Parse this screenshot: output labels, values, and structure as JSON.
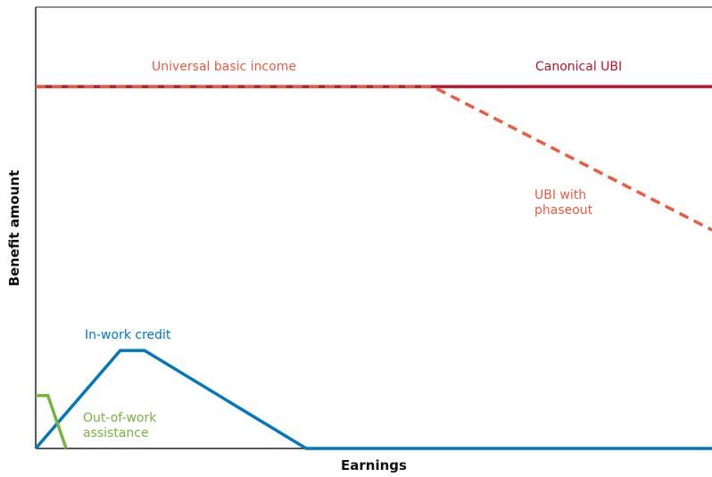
{
  "chart_data": {
    "type": "line",
    "x_label": "Earnings",
    "y_label": "Benefit amount",
    "xlim": [
      0,
      100
    ],
    "ylim": [
      0,
      100
    ],
    "annotations": [
      {
        "text": "Universal basic income",
        "color": "#f05a3c"
      }
    ],
    "series": [
      {
        "name": "Canonical UBI",
        "color": "#c0132b",
        "dashed": false,
        "x": [
          0,
          100
        ],
        "values": [
          82,
          82
        ]
      },
      {
        "name": "UBI with phaseout",
        "color": "#f05a3c",
        "dashed": true,
        "x": [
          0,
          58.7,
          100
        ],
        "values": [
          82,
          82,
          49.5
        ]
      },
      {
        "name": "In-work credit",
        "color": "#0077c0",
        "dashed": false,
        "x": [
          0,
          12.5,
          16.1,
          40,
          100
        ],
        "values": [
          0,
          22.2,
          22.2,
          0,
          0
        ]
      },
      {
        "name": "Out-of-work assistance",
        "color": "#74b43f",
        "dashed": false,
        "x": [
          0,
          1.8,
          4.5
        ],
        "values": [
          12,
          12,
          0
        ]
      }
    ]
  }
}
